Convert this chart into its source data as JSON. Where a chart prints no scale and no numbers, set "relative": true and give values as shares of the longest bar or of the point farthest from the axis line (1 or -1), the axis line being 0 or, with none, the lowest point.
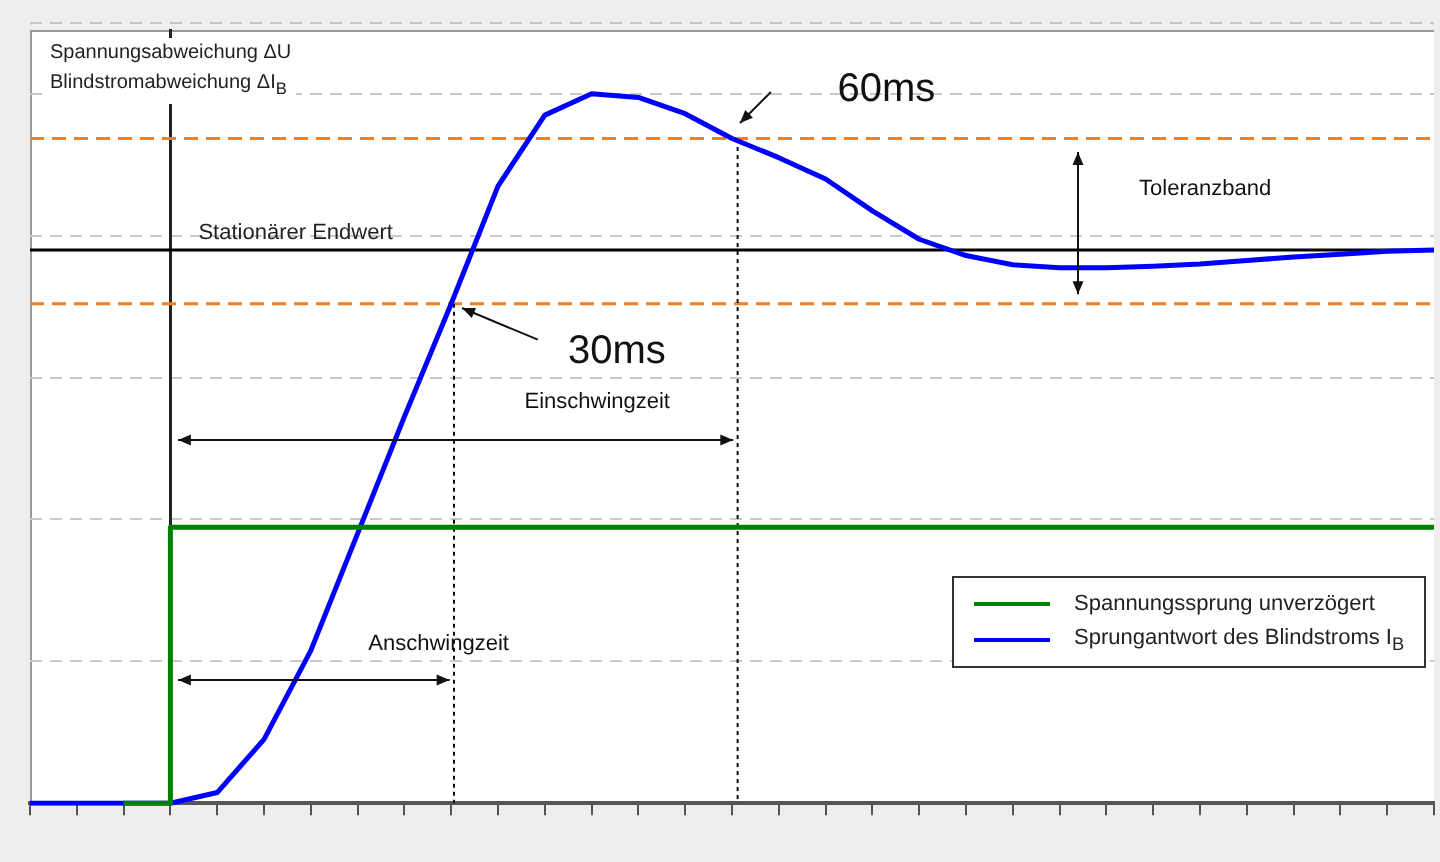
{
  "chart_data": {
    "type": "line",
    "relative": true,
    "ylabel": "Spannungsabweichung ΔU\nBlindstromabweichung ΔI$_{B}$",
    "categories": [
      null,
      null,
      null,
      null,
      null,
      null,
      null,
      null,
      null,
      null,
      null,
      null,
      null,
      null,
      null,
      null,
      null,
      null,
      null,
      null,
      null,
      null,
      null,
      null,
      null,
      null,
      null,
      null,
      null,
      null,
      null
    ],
    "series": [
      {
        "name": "Spannungssprung unverzögert",
        "type": "step",
        "color": "#008000",
        "values": [
          null,
          null,
          0,
          0.389,
          0.389,
          0.389,
          0.389,
          0.389,
          0.389,
          0.389,
          0.389,
          0.389,
          0.389,
          0.389,
          0.389,
          0.389,
          0.389,
          0.389,
          0.389,
          0.389,
          0.389,
          0.389,
          0.389,
          0.389,
          0.389,
          0.389,
          0.389,
          0.389,
          0.389,
          0.389,
          0.389
        ]
      },
      {
        "name": "Sprungantwort des Blindstroms I$_{B}$",
        "color": "#0000ff",
        "values": [
          0,
          0,
          0,
          0,
          0.015,
          0.09,
          0.215,
          0.38,
          0.545,
          0.704,
          0.87,
          0.97,
          1,
          0.995,
          0.972,
          0.937,
          0.91,
          0.88,
          0.835,
          0.795,
          0.772,
          0.759,
          0.755,
          0.755,
          0.757,
          0.76,
          0.765,
          0.77,
          0.774,
          0.778,
          0.78
        ]
      }
    ],
    "ref_lines": [
      {
        "axis": "y",
        "value": 0.78,
        "label": "Stationärer Endwert",
        "color": "#000000",
        "line_style": "solid"
      },
      {
        "axis": "y",
        "value": 0.937,
        "color": "#f08020",
        "line_style": "dashed"
      },
      {
        "axis": "y",
        "value": 0.704,
        "color": "#f08020",
        "line_style": "dashed"
      }
    ],
    "annotations": [
      "30ms",
      "60ms",
      "Einschwingzeit",
      "Anschwingzeit",
      "Toleranzband"
    ],
    "grid": "y",
    "legend": "bottom right",
    "marker": "none",
    "line_style": "solid"
  }
}
